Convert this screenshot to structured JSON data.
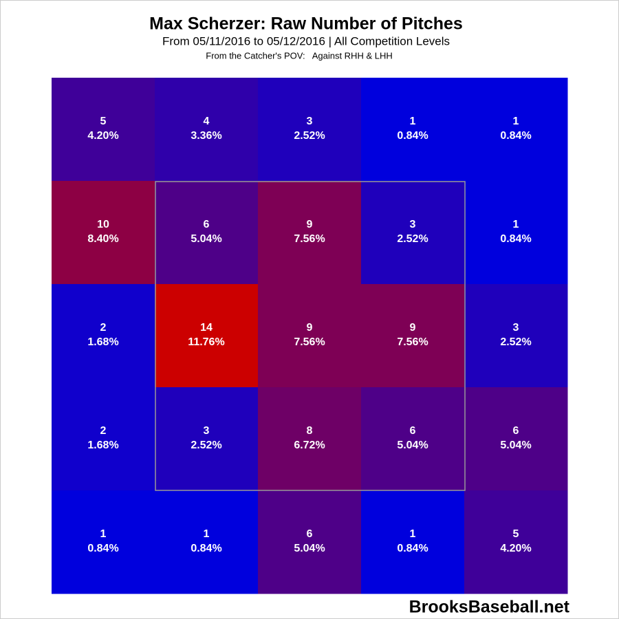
{
  "chart_data": {
    "type": "heatmap",
    "title": "Max Scherzer: Raw Number of Pitches",
    "subtitle": "From 05/11/2016 to 05/12/2016 | All Competition Levels",
    "note": "From the Catcher's POV:   Against RHH & LHH",
    "watermark": "BrooksBaseball.net",
    "values": [
      [
        5,
        4,
        3,
        1,
        1
      ],
      [
        10,
        6,
        9,
        3,
        1
      ],
      [
        2,
        14,
        9,
        9,
        3
      ],
      [
        2,
        3,
        8,
        6,
        6
      ],
      [
        1,
        1,
        6,
        1,
        5
      ]
    ],
    "percent_values": [
      [
        4.2,
        3.36,
        2.52,
        0.84,
        0.84
      ],
      [
        8.4,
        5.04,
        7.56,
        2.52,
        0.84
      ],
      [
        1.68,
        11.76,
        7.56,
        7.56,
        2.52
      ],
      [
        1.68,
        2.52,
        6.72,
        5.04,
        5.04
      ],
      [
        0.84,
        0.84,
        5.04,
        0.84,
        4.2
      ]
    ],
    "percent_labels": [
      [
        "4.20%",
        "3.36%",
        "2.52%",
        "0.84%",
        "0.84%"
      ],
      [
        "8.40%",
        "5.04%",
        "7.56%",
        "2.52%",
        "0.84%"
      ],
      [
        "1.68%",
        "11.76%",
        "7.56%",
        "7.56%",
        "2.52%"
      ],
      [
        "1.68%",
        "2.52%",
        "6.72%",
        "5.04%",
        "5.04%"
      ],
      [
        "0.84%",
        "0.84%",
        "5.04%",
        "0.84%",
        "4.20%"
      ]
    ],
    "colormap": [
      "#0000dd",
      "#cc0000"
    ]
  }
}
